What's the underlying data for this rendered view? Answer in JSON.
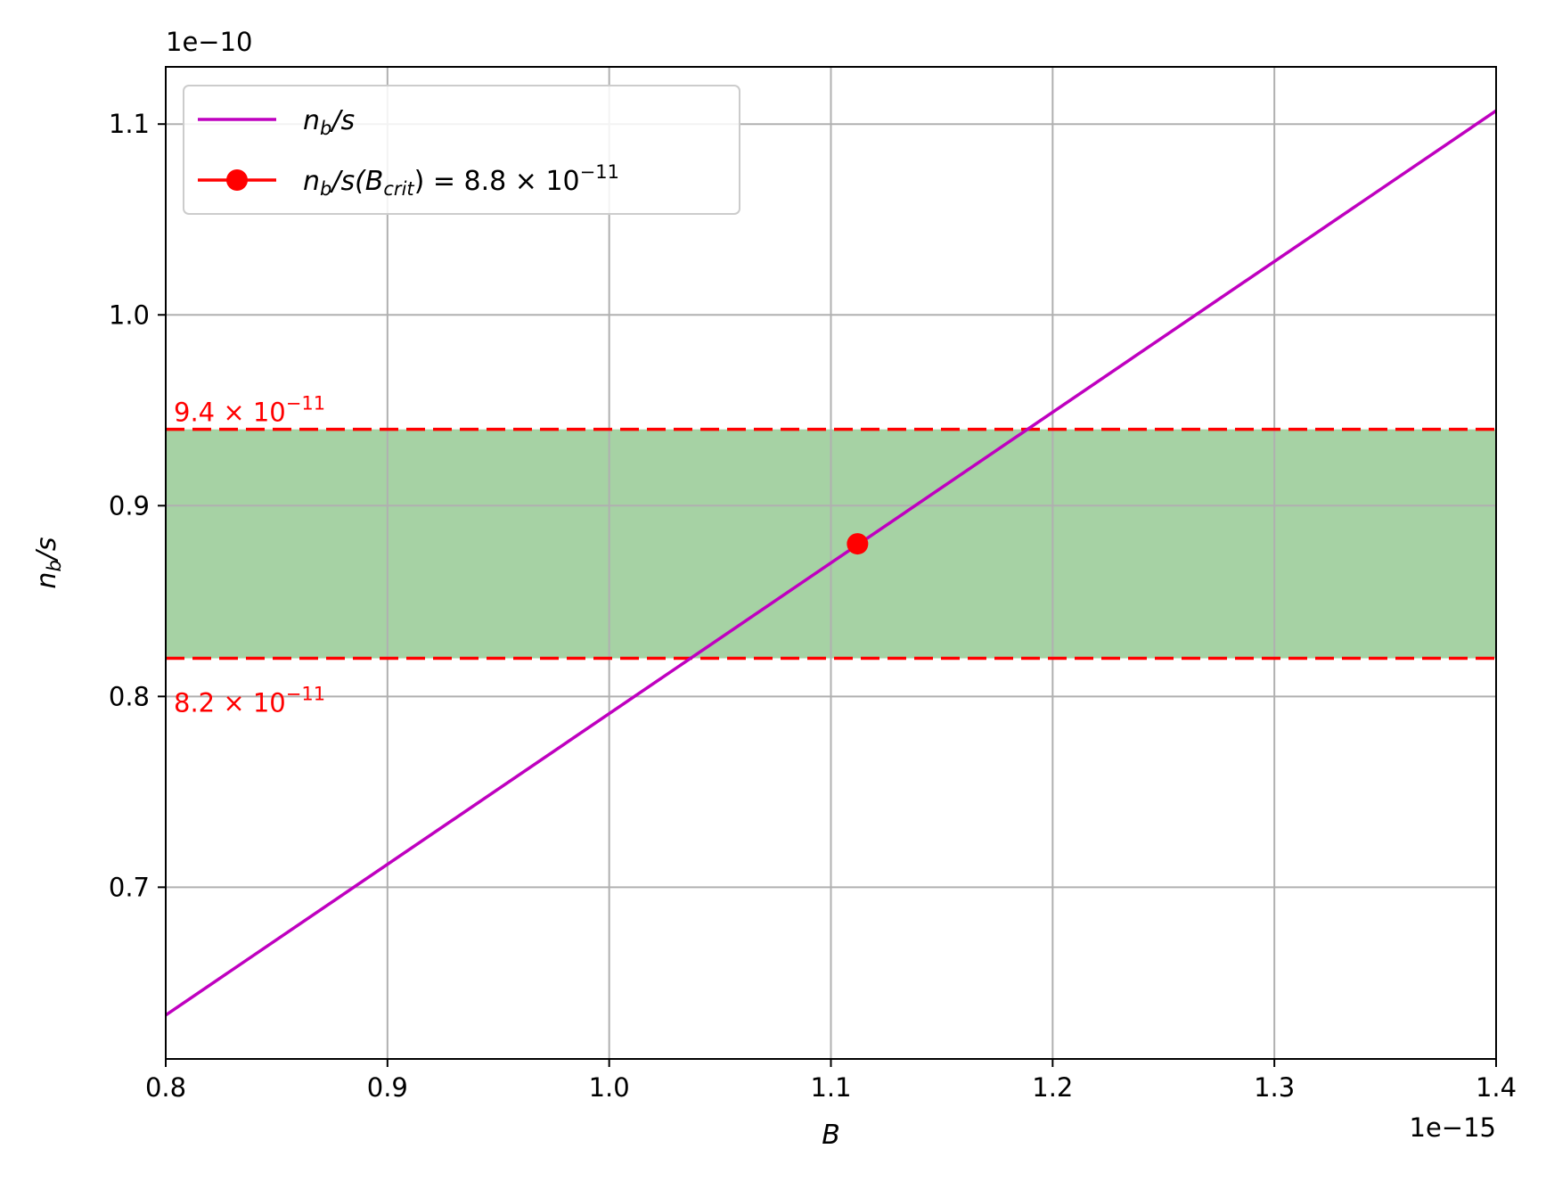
{
  "chart_data": {
    "type": "line",
    "xlabel": "B",
    "ylabel": "n_b/s",
    "x_offset_label": "1e−15",
    "y_offset_label": "1e−10",
    "x_scale": 1e-15,
    "y_scale": 1e-10,
    "xlim": [
      0.8,
      1.4
    ],
    "ylim": [
      0.61,
      1.13
    ],
    "x_ticks": [
      0.8,
      0.9,
      1.0,
      1.1,
      1.2,
      1.3,
      1.4
    ],
    "x_tick_labels": [
      "0.8",
      "0.9",
      "1.0",
      "1.1",
      "1.2",
      "1.3",
      "1.4"
    ],
    "y_ticks": [
      0.7,
      0.8,
      0.9,
      1.0,
      1.1
    ],
    "y_tick_labels": [
      "0.7",
      "0.8",
      "0.9",
      "1.0",
      "1.1"
    ],
    "grid": true,
    "legend_position": "top-left",
    "series": [
      {
        "name": "n_b/s",
        "color": "#bf00bf",
        "x": [
          0.8,
          1.4
        ],
        "y": [
          0.633,
          1.107
        ]
      }
    ],
    "critical_point": {
      "name": "n_b/s(B_crit) = 8.8 × 10^−11",
      "x": 1.112,
      "y": 0.88,
      "color": "#ff0000"
    },
    "band": {
      "lower": 0.82,
      "upper": 0.94,
      "fill_color": "#a6d2a4",
      "line_color": "#ff0000",
      "upper_label": "9.4 × 10^−11",
      "lower_label": "8.2 × 10^−11"
    },
    "legend": {
      "line_entry": {
        "base": "n",
        "sub": "b",
        "tail": "/s"
      },
      "point_entry": {
        "base": "n",
        "sub": "b",
        "mid": "/s(B",
        "sub2": "crit",
        "tail": ") = 8.8 × 10",
        "sup": "−11"
      }
    },
    "band_labels": {
      "upper": {
        "text": "9.4 × 10",
        "sup": "−11"
      },
      "lower": {
        "text": "8.2 × 10",
        "sup": "−11"
      }
    },
    "ylabel_parts": {
      "base": "n",
      "sub": "b",
      "tail": "/s"
    }
  }
}
